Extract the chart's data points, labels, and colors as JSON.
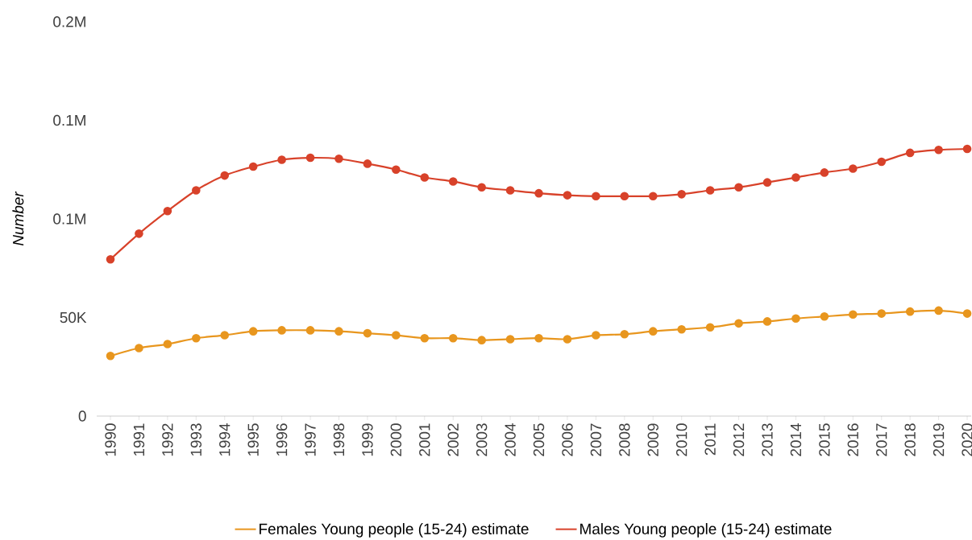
{
  "chart_data": {
    "type": "line",
    "ylabel": "Number",
    "categories": [
      "1990",
      "1991",
      "1992",
      "1993",
      "1994",
      "1995",
      "1996",
      "1997",
      "1998",
      "1999",
      "2000",
      "2001",
      "2002",
      "2003",
      "2004",
      "2005",
      "2006",
      "2007",
      "2008",
      "2009",
      "2010",
      "2011",
      "2012",
      "2013",
      "2014",
      "2015",
      "2016",
      "2017",
      "2018",
      "2019",
      "2020"
    ],
    "series": [
      {
        "name": "Females Young people (15-24) estimate",
        "color": "#e8961e",
        "values": [
          30500,
          34500,
          36500,
          39500,
          41000,
          43000,
          43500,
          43500,
          43000,
          42000,
          41000,
          39500,
          39500,
          38500,
          39000,
          39500,
          39000,
          41000,
          41500,
          43000,
          44000,
          45000,
          47000,
          48000,
          49500,
          50500,
          51500,
          52000,
          53000,
          53500,
          52000
        ]
      },
      {
        "name": "Males Young people (15-24)  estimate",
        "color": "#d8422a",
        "values": [
          79500,
          92500,
          104000,
          114500,
          122000,
          126500,
          130000,
          131000,
          130500,
          128000,
          125000,
          121000,
          119000,
          116000,
          114500,
          113000,
          112000,
          111500,
          111500,
          111500,
          112500,
          114500,
          116000,
          118500,
          121000,
          123500,
          125500,
          129000,
          133500,
          135000,
          135500
        ]
      }
    ],
    "ylim": [
      0,
      200000
    ],
    "yticks": [
      0,
      {
        "value": 50000,
        "label": "50K"
      },
      {
        "value": 100000,
        "label": "0.1M"
      },
      {
        "value": 150000,
        "label": "0.1M"
      },
      {
        "value": 200000,
        "label": "0.2M"
      }
    ],
    "grid": false,
    "legend": "bottom",
    "marker": "circle",
    "line_style": "solid"
  }
}
